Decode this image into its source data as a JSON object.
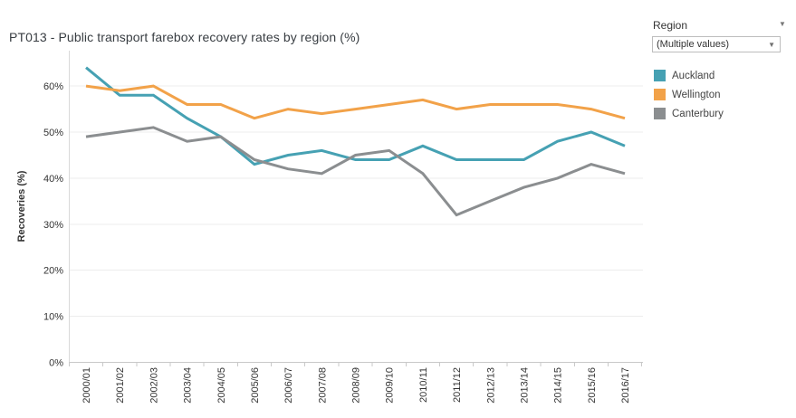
{
  "title": "PT013 - Public transport farebox recovery rates by region (%)",
  "filter": {
    "label": "Region",
    "value": "(Multiple values)"
  },
  "chart_data": {
    "type": "line",
    "title": "PT013 - Public transport farebox recovery rates by region (%)",
    "xlabel": "",
    "ylabel": "Recoveries (%)",
    "ylim": [
      0,
      65
    ],
    "yticks": [
      0,
      10,
      20,
      30,
      40,
      50,
      60
    ],
    "ytick_suffix": "%",
    "grid": true,
    "legend_position": "right",
    "categories": [
      "2000/01",
      "2001/02",
      "2002/03",
      "2003/04",
      "2004/05",
      "2005/06",
      "2006/07",
      "2007/08",
      "2008/09",
      "2009/10",
      "2010/11",
      "2011/12",
      "2012/13",
      "2013/14",
      "2014/15",
      "2015/16",
      "2016/17"
    ],
    "series": [
      {
        "name": "Auckland",
        "color": "#46a1b3",
        "values": [
          64,
          58,
          58,
          53,
          49,
          43,
          45,
          46,
          44,
          44,
          47,
          44,
          44,
          44,
          48,
          50,
          47
        ]
      },
      {
        "name": "Wellington",
        "color": "#f2a249",
        "values": [
          60,
          59,
          60,
          56,
          56,
          53,
          55,
          54,
          55,
          56,
          57,
          55,
          56,
          56,
          56,
          55,
          53
        ]
      },
      {
        "name": "Canterbury",
        "color": "#8b8e90",
        "values": [
          49,
          50,
          51,
          48,
          49,
          44,
          42,
          41,
          45,
          46,
          41,
          32,
          35,
          38,
          40,
          43,
          41
        ]
      }
    ]
  }
}
